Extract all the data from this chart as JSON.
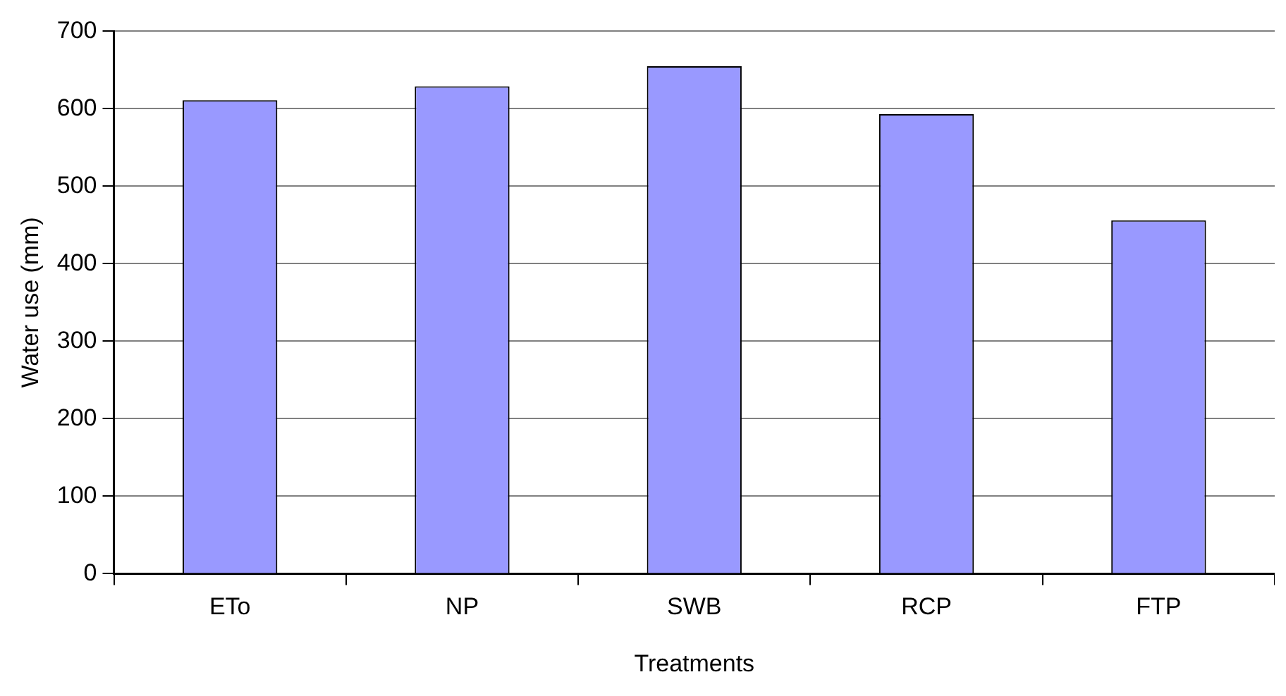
{
  "chart_data": {
    "type": "bar",
    "xlabel": "Treatments",
    "ylabel": "Water use (mm)",
    "categories": [
      "ETo",
      "NP",
      "SWB",
      "RCP",
      "FTP"
    ],
    "values": [
      611,
      629,
      655,
      593,
      456
    ],
    "color": "#9999ff",
    "ylim": [
      0,
      700
    ],
    "yticks": [
      0,
      100,
      200,
      300,
      400,
      500,
      600,
      700
    ],
    "grid": "y",
    "legend": false
  }
}
